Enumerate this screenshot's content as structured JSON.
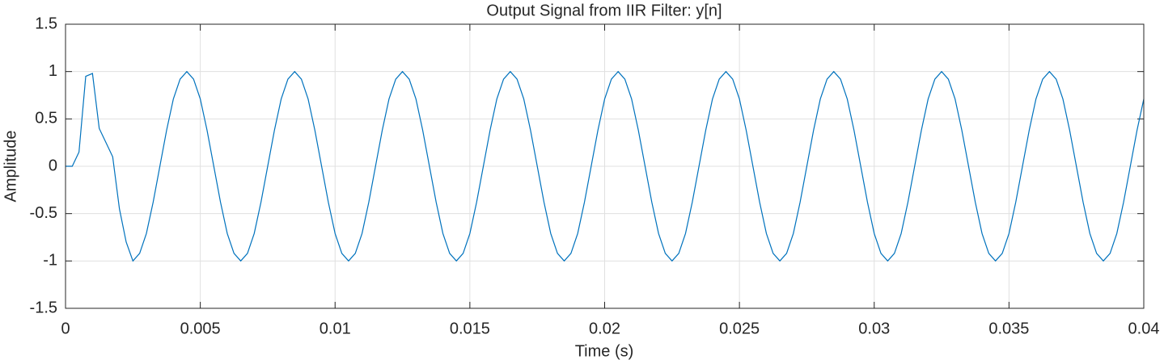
{
  "chart_data": {
    "type": "line",
    "title": "Output Signal from IIR Filter: y[n]",
    "x_label": "Time (s)",
    "y_label": "Amplitude",
    "color": "#0072BD",
    "grid": true,
    "xlim": [
      0,
      0.04
    ],
    "xticks": [
      0,
      0.005,
      0.01,
      0.015,
      0.02,
      0.025,
      0.03,
      0.035,
      0.04
    ],
    "ylim": [
      -1.5,
      1.5
    ],
    "yticks": [
      -1.5,
      -1,
      -0.5,
      0,
      0.5,
      1,
      1.5
    ],
    "x": [
      0,
      0.00025,
      0.0005,
      0.00075,
      0.001,
      0.00125,
      0.0015,
      0.00175,
      0.002,
      0.00225,
      0.0025,
      0.00275,
      0.003,
      0.00325,
      0.0035,
      0.00375,
      0.004,
      0.00425,
      0.0045,
      0.00475,
      0.005,
      0.00525,
      0.0055,
      0.00575,
      0.006,
      0.00625,
      0.0065,
      0.00675,
      0.007,
      0.00725,
      0.0075,
      0.00775,
      0.008,
      0.00825,
      0.0085,
      0.00875,
      0.009,
      0.00925,
      0.0095,
      0.00975,
      0.01,
      0.01025,
      0.0105,
      0.01075,
      0.011,
      0.01125,
      0.0115,
      0.01175,
      0.012,
      0.01225,
      0.0125,
      0.01275,
      0.013,
      0.01325,
      0.0135,
      0.01375,
      0.014,
      0.01425,
      0.0145,
      0.01475,
      0.015,
      0.01525,
      0.0155,
      0.01575,
      0.016,
      0.01625,
      0.0165,
      0.01675,
      0.017,
      0.01725,
      0.0175,
      0.01775,
      0.018,
      0.01825,
      0.0185,
      0.01875,
      0.019,
      0.01925,
      0.0195,
      0.01975,
      0.02,
      0.02025,
      0.0205,
      0.02075,
      0.021,
      0.02125,
      0.0215,
      0.02175,
      0.022,
      0.02225,
      0.0225,
      0.02275,
      0.023,
      0.02325,
      0.0235,
      0.02375,
      0.024,
      0.02425,
      0.0245,
      0.02475,
      0.025,
      0.02525,
      0.0255,
      0.02575,
      0.026,
      0.02625,
      0.0265,
      0.02675,
      0.027,
      0.02725,
      0.0275,
      0.02775,
      0.028,
      0.02825,
      0.0285,
      0.02875,
      0.029,
      0.02925,
      0.0295,
      0.02975,
      0.03,
      0.03025,
      0.0305,
      0.03075,
      0.031,
      0.03125,
      0.0315,
      0.03175,
      0.032,
      0.03225,
      0.0325,
      0.03275,
      0.033,
      0.03325,
      0.0335,
      0.03375,
      0.034,
      0.03425,
      0.0345,
      0.03475,
      0.035,
      0.03525,
      0.0355,
      0.03575,
      0.036,
      0.03625,
      0.0365,
      0.03675,
      0.037,
      0.03725,
      0.0375,
      0.03775,
      0.038,
      0.03825,
      0.0385,
      0.03875,
      0.039,
      0.03925,
      0.0395,
      0.03975,
      0.04
    ],
    "values": [
      0,
      0,
      0.15,
      0.95,
      0.98,
      0.4,
      0.25,
      0.1,
      -0.45,
      -0.8,
      -1,
      -0.92,
      -0.71,
      -0.38,
      0,
      0.38,
      0.71,
      0.92,
      1,
      0.92,
      0.71,
      0.38,
      0,
      -0.38,
      -0.71,
      -0.92,
      -1,
      -0.92,
      -0.71,
      -0.38,
      0,
      0.38,
      0.71,
      0.92,
      1,
      0.92,
      0.71,
      0.38,
      0,
      -0.38,
      -0.71,
      -0.92,
      -1,
      -0.92,
      -0.71,
      -0.38,
      0,
      0.38,
      0.71,
      0.92,
      1,
      0.92,
      0.71,
      0.38,
      0,
      -0.38,
      -0.71,
      -0.92,
      -1,
      -0.92,
      -0.71,
      -0.38,
      0,
      0.38,
      0.71,
      0.92,
      1,
      0.92,
      0.71,
      0.38,
      0,
      -0.38,
      -0.71,
      -0.92,
      -1,
      -0.92,
      -0.71,
      -0.38,
      0,
      0.38,
      0.71,
      0.92,
      1,
      0.92,
      0.71,
      0.38,
      0,
      -0.38,
      -0.71,
      -0.92,
      -1,
      -0.92,
      -0.71,
      -0.38,
      0,
      0.38,
      0.71,
      0.92,
      1,
      0.92,
      0.71,
      0.38,
      0,
      -0.38,
      -0.71,
      -0.92,
      -1,
      -0.92,
      -0.71,
      -0.38,
      0,
      0.38,
      0.71,
      0.92,
      1,
      0.92,
      0.71,
      0.38,
      0,
      -0.38,
      -0.71,
      -0.92,
      -1,
      -0.92,
      -0.71,
      -0.38,
      0,
      0.38,
      0.71,
      0.92,
      1,
      0.92,
      0.71,
      0.38,
      0,
      -0.38,
      -0.71,
      -0.92,
      -1,
      -0.92,
      -0.71,
      -0.38,
      0,
      0.38,
      0.71,
      0.92,
      1,
      0.92,
      0.71,
      0.38,
      0,
      -0.38,
      -0.71,
      -0.92,
      -1,
      -0.92,
      -0.71,
      -0.38,
      0,
      0.38,
      0.71
    ]
  }
}
